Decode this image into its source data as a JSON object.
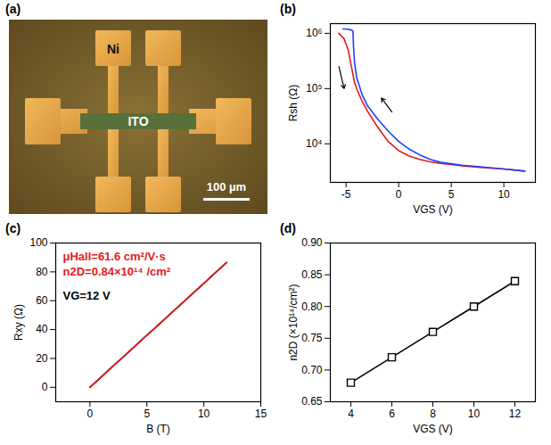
{
  "chart_data": [
    {
      "panel": "(a)",
      "type": "micrograph",
      "annotations": [
        "Ni",
        "ITO"
      ],
      "scale_bar": "100 µm"
    },
    {
      "panel": "(b)",
      "type": "line",
      "log": "y",
      "grid": false,
      "xlabel": "VGS (V)",
      "ylabel": "Rsh (Ω)",
      "xlim": [
        -6.5,
        13
      ],
      "xticks": [
        -5,
        0,
        5,
        10
      ],
      "ylim": [
        2000,
        1500000
      ],
      "yticks": [
        {
          "value": 10000,
          "label": "10⁴"
        },
        {
          "value": 100000,
          "label": "10⁵"
        },
        {
          "value": 1000000,
          "label": "10⁶"
        }
      ],
      "series": [
        {
          "color": "#e8191c",
          "line_style": "solid",
          "x": [
            -5.7,
            -5.2,
            -4.8,
            -4.5,
            -4.2,
            -4,
            -3.5,
            -3,
            -2,
            -1,
            0,
            1,
            2,
            3,
            4,
            6,
            8,
            10,
            12
          ],
          "values": [
            1000000,
            800000,
            500000,
            250000,
            130000,
            100000,
            60000,
            40000,
            20000,
            11000,
            7500,
            6000,
            5200,
            4700,
            4400,
            4000,
            3700,
            3500,
            3200
          ]
        },
        {
          "color": "#1f3fff",
          "line_style": "solid",
          "x": [
            12,
            10,
            8,
            6,
            4,
            3,
            2,
            1,
            0,
            -1,
            -2,
            -3,
            -3.5,
            -4,
            -4.2,
            -4.3,
            -4.35,
            -4.5,
            -5,
            -5.3
          ],
          "values": [
            3200,
            3500,
            3800,
            4100,
            4600,
            5200,
            6300,
            8000,
            11000,
            17000,
            28000,
            50000,
            80000,
            160000,
            300000,
            600000,
            1100000,
            1150000,
            1200000,
            1200000
          ]
        }
      ]
    },
    {
      "panel": "(c)",
      "type": "line",
      "grid": false,
      "xlabel": "B (T)",
      "ylabel": "Rxy (Ω)",
      "xlim": [
        -3,
        15
      ],
      "xticks": [
        0,
        5,
        10,
        15
      ],
      "ylim": [
        -10,
        100
      ],
      "yticks": [
        0,
        20,
        40,
        60,
        80,
        100
      ],
      "annotations": [
        {
          "text": "μHall=61.6 cm²/V·s",
          "color": "#e8191c"
        },
        {
          "text": "n2D=0.84×10¹⁴ /cm²",
          "color": "#e8191c"
        },
        {
          "text": "VG=12 V",
          "color": "#000000"
        }
      ],
      "series": [
        {
          "color": "#000000",
          "line_style": "solid",
          "x": [
            0,
            1,
            2,
            3,
            4,
            5,
            6,
            7,
            8,
            9,
            10,
            11,
            12
          ],
          "values": [
            0,
            7.2,
            14.5,
            21.6,
            28.8,
            36.2,
            43.1,
            50.5,
            57.6,
            64.9,
            72.0,
            79.4,
            86.5
          ]
        },
        {
          "color": "#e8191c",
          "line_style": "solid",
          "x": [
            0,
            12
          ],
          "values": [
            0,
            86.5
          ]
        }
      ]
    },
    {
      "panel": "(d)",
      "type": "line",
      "grid": false,
      "xlabel": "VGS (V)",
      "ylabel": "n2D (×10¹⁴/cm²)",
      "xlim": [
        3,
        13
      ],
      "xticks": [
        4,
        6,
        8,
        10,
        12
      ],
      "ylim": [
        0.65,
        0.9
      ],
      "yticks": [
        0.65,
        {
          "value": 0.7,
          "label": "0.70"
        },
        0.75,
        {
          "value": 0.8,
          "label": "0.80"
        },
        0.85,
        {
          "value": 0.9,
          "label": "0.90"
        }
      ],
      "series": [
        {
          "color": "#000000",
          "line_style": "solid",
          "marker": "square",
          "x": [
            4,
            6,
            8,
            10,
            12
          ],
          "values": [
            0.68,
            0.72,
            0.76,
            0.8,
            0.84
          ]
        }
      ]
    }
  ]
}
